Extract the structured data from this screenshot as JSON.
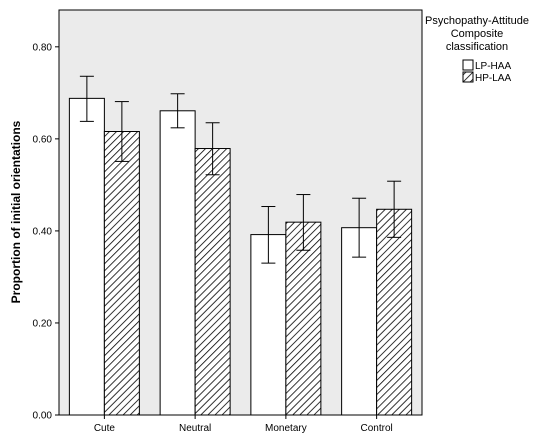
{
  "chart_data": {
    "type": "bar",
    "ylabel": "Proportion of initial orientations",
    "xlabel": "",
    "ylim": [
      0,
      0.88
    ],
    "yticks": [
      "0.00",
      "0.20",
      "0.40",
      "0.60",
      "0.80"
    ],
    "categories": [
      "Cute",
      "Neutral",
      "Monetary",
      "Control"
    ],
    "grid": false,
    "legend_position": "right",
    "legend_title": [
      "Psychopathy-Attitude",
      "Composite",
      "classification"
    ],
    "series": [
      {
        "name": "LP-HAA",
        "pattern": "solid-white",
        "values": [
          0.688,
          0.661,
          0.392,
          0.407
        ],
        "error_low": [
          0.638,
          0.624,
          0.33,
          0.343
        ],
        "error_high": [
          0.736,
          0.698,
          0.453,
          0.471
        ]
      },
      {
        "name": "HP-LAA",
        "pattern": "diagonal-hatch",
        "values": [
          0.616,
          0.579,
          0.419,
          0.447
        ],
        "error_low": [
          0.551,
          0.522,
          0.358,
          0.386
        ],
        "error_high": [
          0.681,
          0.635,
          0.479,
          0.508
        ]
      }
    ],
    "colors": {
      "plot_background": "#ebebeb",
      "bar_fill": "#ffffff",
      "bar_stroke": "#000000",
      "hatch": "#000000"
    }
  }
}
